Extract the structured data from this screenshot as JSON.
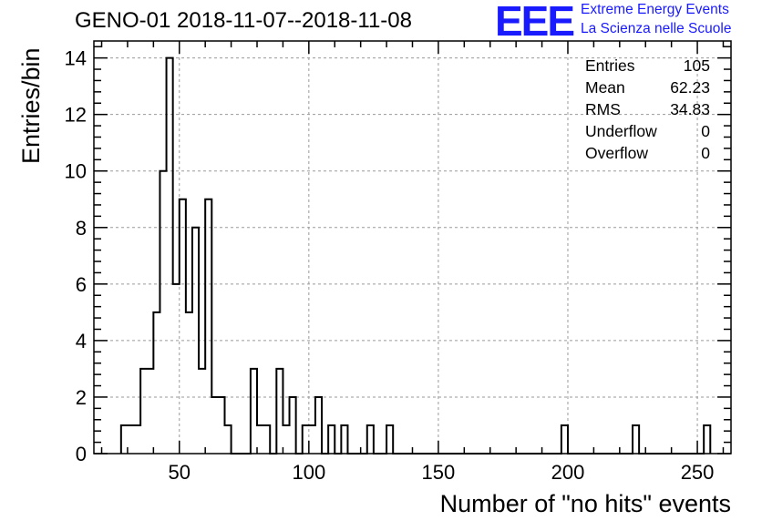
{
  "title": "GENO-01 2018-11-07--2018-11-08",
  "logo": {
    "mark": "EEE",
    "line1": "Extreme Energy Events",
    "line2": "La Scienza nelle Scuole",
    "color": "#1a1aff"
  },
  "stats": [
    {
      "label": "Entries",
      "value": "105"
    },
    {
      "label": "Mean",
      "value": "62.23"
    },
    {
      "label": "RMS",
      "value": "34.83"
    },
    {
      "label": "Underflow",
      "value": "0"
    },
    {
      "label": "Overflow",
      "value": "0"
    }
  ],
  "chart_data": {
    "type": "histogram",
    "xlabel": "Number of \"no hits\" events",
    "ylabel": "Entries/bin",
    "xlim": [
      17,
      263
    ],
    "ylim": [
      0,
      14.6
    ],
    "bin_width": 2.5,
    "xticks": [
      50,
      100,
      150,
      200,
      250
    ],
    "yticks": [
      0,
      2,
      4,
      6,
      8,
      10,
      12,
      14
    ],
    "grid": true,
    "bins": [
      {
        "x0": 27.5,
        "value": 1
      },
      {
        "x0": 30.0,
        "value": 1
      },
      {
        "x0": 32.5,
        "value": 1
      },
      {
        "x0": 35.0,
        "value": 3
      },
      {
        "x0": 37.5,
        "value": 3
      },
      {
        "x0": 40.0,
        "value": 5
      },
      {
        "x0": 42.5,
        "value": 10
      },
      {
        "x0": 45.0,
        "value": 14
      },
      {
        "x0": 47.5,
        "value": 6
      },
      {
        "x0": 50.0,
        "value": 9
      },
      {
        "x0": 52.5,
        "value": 5
      },
      {
        "x0": 55.0,
        "value": 8
      },
      {
        "x0": 57.5,
        "value": 3
      },
      {
        "x0": 60.0,
        "value": 9
      },
      {
        "x0": 62.5,
        "value": 2
      },
      {
        "x0": 65.0,
        "value": 2
      },
      {
        "x0": 67.5,
        "value": 1
      },
      {
        "x0": 77.5,
        "value": 3
      },
      {
        "x0": 80.0,
        "value": 1
      },
      {
        "x0": 82.5,
        "value": 1
      },
      {
        "x0": 87.5,
        "value": 3
      },
      {
        "x0": 90.0,
        "value": 1
      },
      {
        "x0": 92.5,
        "value": 2
      },
      {
        "x0": 97.5,
        "value": 1
      },
      {
        "x0": 100.0,
        "value": 1
      },
      {
        "x0": 102.5,
        "value": 2
      },
      {
        "x0": 107.5,
        "value": 1
      },
      {
        "x0": 112.5,
        "value": 1
      },
      {
        "x0": 122.5,
        "value": 1
      },
      {
        "x0": 130.0,
        "value": 1
      },
      {
        "x0": 197.5,
        "value": 1
      },
      {
        "x0": 225.0,
        "value": 1
      },
      {
        "x0": 252.5,
        "value": 1
      }
    ]
  }
}
